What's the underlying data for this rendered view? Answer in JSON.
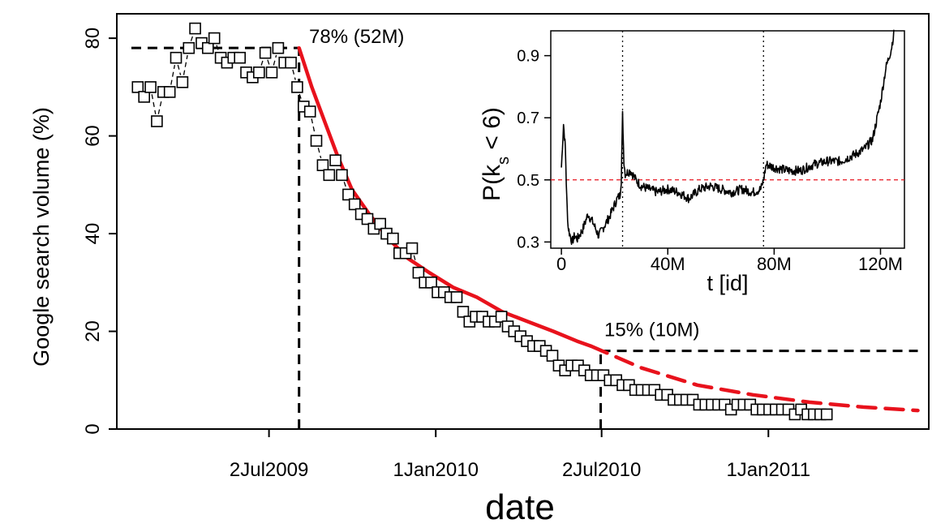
{
  "chart_data": [
    {
      "type": "scatter",
      "xlabel": "date",
      "ylabel": "Google search volume (%)",
      "x_ticks": [
        {
          "date": "2009-07-02",
          "label": "2Jul2009"
        },
        {
          "date": "2010-01-01",
          "label": "1Jan2010"
        },
        {
          "date": "2010-07-02",
          "label": "2Jul2010"
        },
        {
          "date": "2011-01-01",
          "label": "1Jan2011"
        }
      ],
      "xlim": [
        "2009-01-16",
        "2011-06-26"
      ],
      "y_ticks": [
        0,
        20,
        40,
        60,
        80
      ],
      "ylim": [
        0,
        85
      ],
      "weekly_points": {
        "start_date": "2009-02-08",
        "interval_days": 7,
        "values": [
          70,
          68,
          70,
          63,
          69,
          69,
          76,
          71,
          78,
          82,
          79,
          78,
          80,
          76,
          75,
          76,
          76,
          73,
          72,
          73,
          77,
          73,
          78,
          75,
          75,
          70,
          66,
          65,
          59,
          54,
          52,
          55,
          52,
          48,
          46,
          44,
          43,
          41,
          42,
          40,
          39,
          36,
          36,
          37,
          32,
          30,
          30,
          28,
          28,
          27,
          27,
          24,
          22,
          23,
          23,
          22,
          22,
          23,
          21,
          20,
          19,
          18,
          17,
          17,
          16,
          15,
          13,
          12,
          13,
          13,
          12,
          11,
          11,
          11,
          10,
          10,
          9,
          9,
          8,
          8,
          8,
          8,
          7,
          7,
          6,
          6,
          6,
          6,
          5,
          5,
          5,
          5,
          5,
          4,
          5,
          5,
          5,
          4,
          4,
          4,
          4,
          4,
          4,
          3,
          4,
          3,
          3,
          3,
          3
        ]
      },
      "fit_solid": {
        "x": [
          "2009-08-04",
          "2009-08-18",
          "2009-09-01",
          "2009-09-15",
          "2009-10-01",
          "2009-10-20",
          "2009-11-10",
          "2009-12-01",
          "2009-12-25",
          "2010-01-20",
          "2010-02-15",
          "2010-03-15",
          "2010-04-12",
          "2010-05-10",
          "2010-06-05",
          "2010-06-20"
        ],
        "y": [
          78,
          70,
          63,
          56,
          49,
          44,
          39,
          35,
          32,
          29,
          27,
          24,
          22,
          20,
          18,
          17
        ]
      },
      "fit_dashed": {
        "x": [
          "2010-06-20",
          "2010-08-15",
          "2010-10-15",
          "2010-12-15",
          "2011-02-15",
          "2011-04-15",
          "2011-06-14"
        ],
        "y": [
          17,
          12.5,
          9,
          7,
          5.5,
          4.5,
          3.8
        ]
      },
      "plateau_lines": [
        {
          "from": "2009-02-01",
          "to": "2009-08-04",
          "y": 78
        },
        {
          "from": "2010-07-01",
          "to": "2011-06-14",
          "y": 16
        }
      ],
      "vertical_markers": [
        {
          "date": "2009-08-04",
          "from_y": 0,
          "to_y": 78
        },
        {
          "date": "2010-07-01",
          "from_y": 0,
          "to_y": 16
        }
      ],
      "annotations": [
        {
          "text": "78% (52M)",
          "date": "2009-08-15",
          "y": 79
        },
        {
          "text": "15% (10M)",
          "date": "2010-07-05",
          "y": 19
        }
      ]
    },
    {
      "type": "line",
      "xlabel": "t [id]",
      "ylabel_main": "P(k",
      "ylabel_sub": "s",
      "ylabel_tail": " < 6)",
      "x_ticks": [
        {
          "value": 0,
          "label": "0"
        },
        {
          "value": 40,
          "label": "40M"
        },
        {
          "value": 80,
          "label": "80M"
        },
        {
          "value": 120,
          "label": "120M"
        }
      ],
      "xlim": [
        -4,
        129
      ],
      "y_ticks": [
        {
          "value": 0.3,
          "label": "0.3"
        },
        {
          "value": 0.5,
          "label": "0.5"
        },
        {
          "value": 0.7,
          "label": "0.7"
        },
        {
          "value": 0.9,
          "label": "0.9"
        }
      ],
      "ylim": [
        0.28,
        0.98
      ],
      "reference_line_y": 0.5,
      "vertical_markers": [
        23,
        76
      ],
      "series": {
        "x": [
          0,
          0.8,
          1.5,
          2,
          2.5,
          3,
          4,
          5,
          6,
          8,
          10,
          12,
          14,
          16,
          18,
          20,
          21,
          22,
          22.5,
          23,
          23.5,
          24,
          26,
          28,
          30,
          33,
          36,
          40,
          44,
          48,
          52,
          56,
          60,
          64,
          68,
          72,
          75,
          76,
          77,
          80,
          85,
          90,
          95,
          100,
          105,
          110,
          114,
          117,
          120,
          122,
          124,
          125
        ],
        "y": [
          0.54,
          0.68,
          0.6,
          0.44,
          0.35,
          0.33,
          0.3,
          0.32,
          0.31,
          0.34,
          0.39,
          0.36,
          0.32,
          0.35,
          0.38,
          0.42,
          0.44,
          0.45,
          0.5,
          0.71,
          0.56,
          0.52,
          0.53,
          0.5,
          0.48,
          0.47,
          0.46,
          0.47,
          0.46,
          0.44,
          0.47,
          0.48,
          0.47,
          0.46,
          0.47,
          0.46,
          0.47,
          0.5,
          0.55,
          0.54,
          0.53,
          0.53,
          0.55,
          0.56,
          0.56,
          0.58,
          0.6,
          0.63,
          0.75,
          0.86,
          0.92,
          0.97
        ]
      }
    }
  ],
  "colors": {
    "fit": "#e8121c",
    "reference": "#e8121c",
    "ink": "#000000"
  }
}
